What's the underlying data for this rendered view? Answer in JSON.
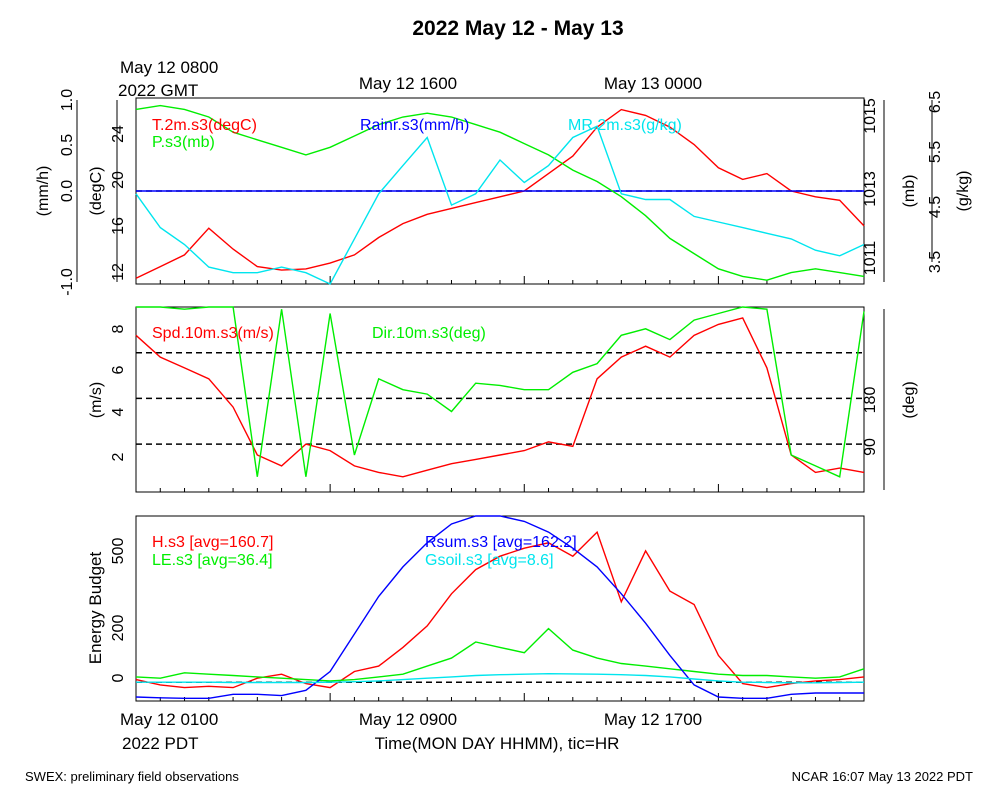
{
  "title": "2022 May 12 - May 13",
  "top_time_labels": [
    {
      "line1": "May 12 0800",
      "line2": "2022 GMT"
    },
    {
      "line1": "May 12 1600",
      "line2": ""
    },
    {
      "line1": "May 13 0000",
      "line2": ""
    }
  ],
  "bottom_time_labels": [
    {
      "line1": "May 12 0100",
      "line2": "2022 PDT"
    },
    {
      "line1": "May 12 0900",
      "line2": ""
    },
    {
      "line1": "May 12 1700",
      "line2": ""
    }
  ],
  "xlabel": "Time(MON DAY HHMM), tic=HR",
  "footer_left": "SWEX: preliminary field observations",
  "footer_right": "NCAR 16:07 May 13 2022 PDT",
  "colors": {
    "red": "#ff0000",
    "green": "#00ee00",
    "blue": "#0000ff",
    "cyan": "#00e5ee",
    "black": "#000000"
  },
  "chart_data": [
    {
      "type": "line",
      "panel": "meteorology",
      "x_unit": "hours since May 12 0100 PDT",
      "xlim": [
        0,
        30
      ],
      "axes": {
        "rain": {
          "label": "(mm/h)",
          "ylim": [
            -1,
            1
          ],
          "ticks": [
            "-1.0",
            "0.0",
            "0.5",
            "1.0"
          ]
        },
        "temp": {
          "label": "(degC)",
          "ylim": [
            12,
            28
          ],
          "ticks": [
            "12",
            "16",
            "20",
            "24"
          ]
        },
        "pres": {
          "label": "(mb)",
          "ylim": [
            1010.4,
            1015.3
          ],
          "ticks": [
            "1011",
            "1013",
            "1015"
          ]
        },
        "mr": {
          "label": "(g/kg)",
          "ylim": [
            3.4,
            6.7
          ],
          "ticks": [
            "3.5",
            "4.5",
            "5.5",
            "6.5"
          ]
        }
      },
      "reference_lines": [
        {
          "axis": "rain",
          "value": 0.0
        }
      ],
      "series": [
        {
          "name": "T.2m.s3(degC)",
          "axis": "temp",
          "color": "red",
          "x": [
            0,
            1,
            2,
            3,
            4,
            5,
            6,
            7,
            8,
            9,
            10,
            11,
            12,
            13,
            14,
            15,
            16,
            17,
            18,
            19,
            20,
            21,
            22,
            23,
            24,
            25,
            26,
            27,
            28,
            29,
            30
          ],
          "y": [
            12.5,
            13.5,
            14.5,
            16.8,
            15,
            13.5,
            13.2,
            13.3,
            13.8,
            14.5,
            16,
            17.2,
            18,
            18.5,
            19,
            19.5,
            20,
            21.5,
            23,
            25.5,
            27,
            26.5,
            25.5,
            24,
            22,
            21,
            21.5,
            20,
            19.5,
            19.2,
            17
          ]
        },
        {
          "name": "Rainr.s3(mm/h)",
          "axis": "rain",
          "color": "blue",
          "x": [
            0,
            30
          ],
          "y": [
            0,
            0
          ]
        },
        {
          "name": "P.s3(mb)",
          "axis": "pres",
          "color": "green",
          "x": [
            0,
            1,
            2,
            3,
            4,
            5,
            6,
            7,
            8,
            9,
            10,
            11,
            12,
            13,
            14,
            15,
            16,
            17,
            18,
            19,
            20,
            21,
            22,
            23,
            24,
            25,
            26,
            27,
            28,
            29,
            30
          ],
          "y": [
            1015,
            1015.1,
            1015,
            1014.8,
            1014.4,
            1014.2,
            1014,
            1013.8,
            1014,
            1014.3,
            1014.6,
            1014.8,
            1014.9,
            1014.8,
            1014.6,
            1014.4,
            1014.1,
            1013.8,
            1013.4,
            1013.1,
            1012.7,
            1012.2,
            1011.6,
            1011.2,
            1010.8,
            1010.6,
            1010.5,
            1010.7,
            1010.8,
            1010.7,
            1010.6
          ]
        },
        {
          "name": "MR.2m.s3(g/kg)",
          "axis": "mr",
          "color": "cyan",
          "x": [
            0,
            1,
            2,
            3,
            4,
            5,
            6,
            7,
            8,
            9,
            10,
            11,
            12,
            13,
            14,
            15,
            16,
            17,
            18,
            19,
            20,
            21,
            22,
            23,
            24,
            25,
            26,
            27,
            28,
            29,
            30
          ],
          "y": [
            5,
            4.4,
            4.1,
            3.7,
            3.6,
            3.6,
            3.7,
            3.6,
            3.4,
            4.2,
            5,
            5.5,
            6,
            4.8,
            5,
            5.6,
            5.2,
            5.5,
            6,
            6.2,
            5,
            4.9,
            4.9,
            4.6,
            4.5,
            4.4,
            4.3,
            4.2,
            4.0,
            3.9,
            4.1
          ]
        }
      ]
    },
    {
      "type": "line",
      "panel": "wind",
      "x_unit": "hours since May 12 0100 PDT",
      "xlim": [
        0,
        30
      ],
      "axes": {
        "spd": {
          "label": "(m/s)",
          "ylim": [
            0.3,
            8.8
          ],
          "ticks": [
            "2",
            "4",
            "6",
            "8"
          ]
        },
        "dir": {
          "label": "(deg)",
          "ticks": [
            "90",
            "180"
          ]
        }
      },
      "reference_lines": [
        {
          "axis": "spd",
          "value": 2.5
        },
        {
          "axis": "spd",
          "value": 4.6
        },
        {
          "axis": "spd",
          "value": 6.7
        }
      ],
      "series": [
        {
          "name": "Spd.10m.s3(m/s)",
          "axis": "spd",
          "color": "red",
          "x": [
            0,
            1,
            2,
            3,
            4,
            5,
            6,
            7,
            8,
            9,
            10,
            11,
            12,
            13,
            14,
            15,
            16,
            17,
            18,
            19,
            20,
            21,
            22,
            23,
            24,
            25,
            26,
            27,
            28,
            29,
            30
          ],
          "y": [
            7.5,
            6.5,
            6,
            5.5,
            4.2,
            2,
            1.5,
            2.5,
            2.2,
            1.5,
            1.2,
            1,
            1.3,
            1.6,
            1.8,
            2,
            2.2,
            2.6,
            2.4,
            5.5,
            6.5,
            7,
            6.5,
            7.5,
            8,
            8.3,
            6,
            2,
            1.2,
            1.4,
            1.2
          ]
        },
        {
          "name": "Dir.10m.s3(deg)",
          "axis": "spd",
          "color": "green",
          "x": [
            0,
            1,
            2,
            3,
            4,
            5,
            6,
            7,
            8,
            9,
            10,
            11,
            12,
            13,
            14,
            15,
            16,
            17,
            18,
            19,
            20,
            21,
            22,
            23,
            24,
            25,
            26,
            27,
            28,
            29,
            30
          ],
          "y": [
            8.8,
            8.8,
            8.7,
            8.8,
            8.8,
            1,
            8.7,
            1,
            8.5,
            2,
            5.5,
            5,
            4.8,
            4,
            5.3,
            5.2,
            5,
            5,
            5.8,
            6.2,
            7.5,
            7.8,
            7.3,
            8.2,
            8.5,
            8.8,
            8.7,
            2,
            1.5,
            1,
            8.6
          ]
        }
      ]
    },
    {
      "type": "line",
      "panel": "energy",
      "x_unit": "hours since May 12 0100 PDT",
      "xlim": [
        0,
        30
      ],
      "ylabel": "Energy Budget",
      "ylim": [
        -70,
        620
      ],
      "yticks": [
        "0",
        "200",
        "500"
      ],
      "reference_lines": [
        {
          "value": 0
        }
      ],
      "series": [
        {
          "name": "H.s3 [avg=160.7]",
          "color": "red",
          "x": [
            0,
            1,
            2,
            3,
            4,
            5,
            6,
            7,
            8,
            9,
            10,
            11,
            12,
            13,
            14,
            15,
            16,
            17,
            18,
            19,
            20,
            21,
            22,
            23,
            24,
            25,
            26,
            27,
            28,
            29,
            30
          ],
          "y": [
            10,
            -10,
            -20,
            -15,
            -20,
            15,
            30,
            -5,
            -20,
            40,
            60,
            130,
            210,
            330,
            420,
            470,
            500,
            520,
            470,
            560,
            300,
            490,
            340,
            290,
            100,
            -5,
            -20,
            -5,
            5,
            10,
            20
          ]
        },
        {
          "name": "LE.s3 [avg=36.4]",
          "color": "green",
          "x": [
            0,
            1,
            2,
            3,
            4,
            5,
            6,
            7,
            8,
            9,
            10,
            11,
            12,
            13,
            14,
            15,
            16,
            17,
            18,
            19,
            20,
            21,
            22,
            23,
            24,
            25,
            26,
            27,
            28,
            29,
            30
          ],
          "y": [
            20,
            15,
            35,
            30,
            25,
            20,
            15,
            10,
            5,
            10,
            20,
            30,
            60,
            90,
            150,
            130,
            110,
            200,
            120,
            90,
            70,
            60,
            50,
            40,
            30,
            25,
            25,
            20,
            15,
            20,
            50
          ]
        },
        {
          "name": "Rsum.s3 [avg=162.2]",
          "color": "blue",
          "x": [
            0,
            1,
            2,
            3,
            4,
            5,
            6,
            7,
            8,
            9,
            10,
            11,
            12,
            13,
            14,
            15,
            16,
            17,
            18,
            19,
            20,
            21,
            22,
            23,
            24,
            25,
            26,
            27,
            28,
            29,
            30
          ],
          "y": [
            -55,
            -58,
            -60,
            -60,
            -45,
            -45,
            -50,
            -30,
            40,
            180,
            320,
            430,
            520,
            590,
            620,
            620,
            600,
            560,
            500,
            430,
            330,
            220,
            100,
            -10,
            -55,
            -60,
            -60,
            -45,
            -40,
            -40,
            -40
          ]
        },
        {
          "name": "Gsoil.s3 [avg=8.6]",
          "color": "cyan",
          "x": [
            0,
            1,
            2,
            3,
            4,
            5,
            6,
            7,
            8,
            9,
            10,
            11,
            12,
            13,
            14,
            15,
            16,
            17,
            18,
            19,
            20,
            21,
            22,
            23,
            24,
            25,
            26,
            27,
            28,
            29,
            30
          ],
          "y": [
            0,
            0,
            0,
            0,
            -1,
            -1,
            -1,
            -1,
            0,
            2,
            5,
            10,
            15,
            20,
            25,
            28,
            30,
            32,
            31,
            30,
            28,
            25,
            20,
            12,
            5,
            0,
            -1,
            -2,
            -2,
            -1,
            0
          ]
        }
      ]
    }
  ]
}
